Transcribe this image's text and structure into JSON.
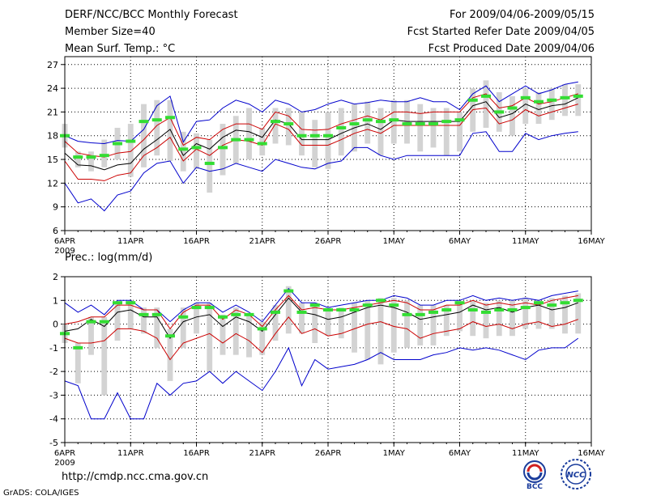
{
  "header": {
    "left": [
      "DERF/NCC/BCC Monthly Forecast",
      "Member Size=40",
      "Mean Surf. Temp.: °C"
    ],
    "right": [
      "For 2009/04/06-2009/05/15",
      "Fcst Started Refer Date 2009/04/05",
      "Fcst Produced Date 2009/04/06"
    ]
  },
  "footer": {
    "url": "http://cmdp.ncc.cma.gov.cn",
    "credit": "GrADS: COLA/IGES",
    "logo_left_text": "BCC",
    "logo_right_text": "NCC"
  },
  "colors": {
    "envelope": "#0000cc",
    "std_band": "#cc0000",
    "mean": "#000000",
    "obs": "#33dd33",
    "spread_bar": "#d3d3d3",
    "grid": "#000000"
  },
  "chart_data": [
    {
      "type": "line",
      "title": "Mean Surf. Temp.: °C",
      "ylim": [
        6,
        28
      ],
      "yticks": [
        6,
        9,
        12,
        15,
        18,
        21,
        24,
        27
      ],
      "day_range": [
        0,
        40
      ],
      "xticks": [
        {
          "day": 0,
          "label": "6APR",
          "sub": "2009"
        },
        {
          "day": 5,
          "label": "11APR"
        },
        {
          "day": 10,
          "label": "16APR"
        },
        {
          "day": 15,
          "label": "21APR"
        },
        {
          "day": 20,
          "label": "26APR"
        },
        {
          "day": 25,
          "label": "1MAY"
        },
        {
          "day": 30,
          "label": "6MAY"
        },
        {
          "day": 35,
          "label": "11MAY"
        },
        {
          "day": 40,
          "label": "16MAY"
        }
      ],
      "days": [
        0,
        1,
        2,
        3,
        4,
        5,
        6,
        7,
        8,
        9,
        10,
        11,
        12,
        13,
        14,
        15,
        16,
        17,
        18,
        19,
        20,
        21,
        22,
        23,
        24,
        25,
        26,
        27,
        28,
        29,
        30,
        31,
        32,
        33,
        34,
        35,
        36,
        37,
        38,
        39
      ],
      "series": [
        {
          "name": "max",
          "style": "envelope",
          "values": [
            18.0,
            17.3,
            17.1,
            17.0,
            17.4,
            17.3,
            18.8,
            21.8,
            23.0,
            17.2,
            19.8,
            20.0,
            21.5,
            22.5,
            22.0,
            21.0,
            22.5,
            22.0,
            21.0,
            21.3,
            22.0,
            22.5,
            22.0,
            22.2,
            22.5,
            22.3,
            22.3,
            22.8,
            22.3,
            22.3,
            21.3,
            23.3,
            24.3,
            22.3,
            23.3,
            24.3,
            23.3,
            23.8,
            24.5,
            24.8
          ]
        },
        {
          "name": "mean_plus_sd",
          "style": "std_band",
          "values": [
            17.3,
            15.8,
            15.5,
            15.3,
            15.8,
            16.0,
            17.5,
            19.3,
            20.3,
            16.8,
            17.8,
            17.5,
            18.8,
            19.5,
            19.5,
            18.8,
            21.0,
            20.5,
            18.8,
            18.7,
            18.8,
            19.5,
            20.0,
            20.5,
            20.0,
            21.0,
            21.0,
            20.8,
            21.0,
            21.0,
            21.0,
            22.8,
            23.3,
            21.5,
            21.8,
            22.8,
            22.0,
            22.3,
            22.8,
            23.3
          ]
        },
        {
          "name": "ensemble_mean",
          "style": "mean",
          "values": [
            15.8,
            14.3,
            14.2,
            13.7,
            14.3,
            14.5,
            16.3,
            17.5,
            18.8,
            15.5,
            17.0,
            16.3,
            17.8,
            18.7,
            18.5,
            17.8,
            20.0,
            19.5,
            17.5,
            17.5,
            17.5,
            18.3,
            19.0,
            19.5,
            18.8,
            20.0,
            19.8,
            19.8,
            19.8,
            19.8,
            19.8,
            21.8,
            22.3,
            20.3,
            20.8,
            22.0,
            21.3,
            21.8,
            22.0,
            22.8
          ]
        },
        {
          "name": "mean_minus_sd",
          "style": "std_band",
          "values": [
            14.8,
            12.5,
            12.5,
            12.3,
            13.0,
            13.3,
            15.5,
            16.5,
            17.8,
            14.8,
            16.3,
            15.5,
            16.8,
            17.5,
            17.3,
            16.8,
            19.5,
            18.8,
            16.8,
            16.8,
            16.8,
            17.5,
            18.3,
            18.8,
            18.3,
            19.3,
            19.3,
            19.3,
            19.3,
            19.3,
            19.3,
            21.3,
            21.5,
            19.5,
            20.0,
            21.3,
            20.5,
            21.0,
            21.5,
            22.0
          ]
        },
        {
          "name": "min",
          "style": "envelope",
          "values": [
            12.0,
            9.5,
            10.0,
            8.5,
            10.5,
            11.0,
            13.3,
            14.5,
            14.8,
            12.0,
            14.0,
            13.5,
            13.8,
            14.5,
            14.0,
            13.5,
            15.0,
            14.5,
            14.0,
            13.8,
            14.5,
            14.8,
            16.5,
            16.5,
            15.5,
            15.0,
            15.5,
            15.5,
            15.5,
            15.5,
            15.5,
            18.3,
            18.5,
            16.0,
            16.0,
            18.3,
            17.5,
            18.0,
            18.3,
            18.5
          ]
        },
        {
          "name": "observed",
          "style": "obs",
          "values": [
            18.0,
            15.3,
            15.3,
            15.5,
            17.0,
            17.3,
            19.8,
            20.0,
            20.3,
            16.3,
            16.5,
            14.5,
            16.5,
            17.5,
            17.5,
            17.0,
            19.8,
            19.5,
            18.0,
            18.0,
            18.0,
            19.0,
            19.5,
            20.0,
            19.8,
            20.0,
            19.5,
            19.5,
            19.5,
            19.8,
            20.0,
            22.5,
            23.0,
            21.0,
            21.5,
            22.8,
            22.3,
            22.5,
            22.8,
            23.0
          ]
        }
      ],
      "spread_bars": {
        "low": [
          16.5,
          14.0,
          13.5,
          14.0,
          15.0,
          12.8,
          14.0,
          15.5,
          14.8,
          13.5,
          13.8,
          10.8,
          13.0,
          14.5,
          15.0,
          15.5,
          17.0,
          16.8,
          15.5,
          14.0,
          13.8,
          15.5,
          16.0,
          17.0,
          15.5,
          17.0,
          17.0,
          16.0,
          16.5,
          15.5,
          16.0,
          18.5,
          19.0,
          18.5,
          18.0,
          19.5,
          19.5,
          20.0,
          20.5,
          20.5
        ],
        "high": [
          19.5,
          16.0,
          16.0,
          17.5,
          19.0,
          19.5,
          22.0,
          22.5,
          22.5,
          18.5,
          18.3,
          17.5,
          19.5,
          20.5,
          21.5,
          19.0,
          21.5,
          21.5,
          21.0,
          20.0,
          21.0,
          21.5,
          22.0,
          22.3,
          21.5,
          22.5,
          22.5,
          22.0,
          21.5,
          21.5,
          21.0,
          24.0,
          25.0,
          23.5,
          23.0,
          24.0,
          23.5,
          24.0,
          24.5,
          24.5
        ]
      }
    },
    {
      "type": "line",
      "title": "Prec.: log(mm/d)",
      "ylim": [
        -5,
        2
      ],
      "yticks": [
        -5,
        -4,
        -3,
        -2,
        -1,
        0,
        1,
        2
      ],
      "day_range": [
        0,
        40
      ],
      "xticks": [
        {
          "day": 0,
          "label": "6APR",
          "sub": "2009"
        },
        {
          "day": 5,
          "label": "11APR"
        },
        {
          "day": 10,
          "label": "16APR"
        },
        {
          "day": 15,
          "label": "21APR"
        },
        {
          "day": 20,
          "label": "26APR"
        },
        {
          "day": 25,
          "label": "1MAY"
        },
        {
          "day": 30,
          "label": "6MAY"
        },
        {
          "day": 35,
          "label": "11MAY"
        },
        {
          "day": 40,
          "label": "16MAY"
        }
      ],
      "days": [
        0,
        1,
        2,
        3,
        4,
        5,
        6,
        7,
        8,
        9,
        10,
        11,
        12,
        13,
        14,
        15,
        16,
        17,
        18,
        19,
        20,
        21,
        22,
        23,
        24,
        25,
        26,
        27,
        28,
        29,
        30,
        31,
        32,
        33,
        34,
        35,
        36,
        37,
        38,
        39
      ],
      "series": [
        {
          "name": "max",
          "style": "envelope",
          "values": [
            0.9,
            0.5,
            0.8,
            0.4,
            1.0,
            1.0,
            0.6,
            0.6,
            0.1,
            0.6,
            0.9,
            0.9,
            0.5,
            0.8,
            0.5,
            0.1,
            0.8,
            1.5,
            0.9,
            0.9,
            0.7,
            0.8,
            0.9,
            1.0,
            1.0,
            1.2,
            1.1,
            0.8,
            0.8,
            1.0,
            1.0,
            1.2,
            1.0,
            1.1,
            1.0,
            1.1,
            1.0,
            1.2,
            1.3,
            1.4
          ]
        },
        {
          "name": "mean_plus_sd",
          "style": "std_band",
          "values": [
            0.0,
            0.1,
            0.3,
            0.3,
            0.8,
            0.8,
            0.6,
            0.6,
            -0.2,
            0.5,
            0.8,
            0.8,
            0.2,
            0.6,
            0.4,
            -0.1,
            0.6,
            1.2,
            0.6,
            0.7,
            0.6,
            0.6,
            0.7,
            0.8,
            0.9,
            1.0,
            0.9,
            0.6,
            0.6,
            0.8,
            0.8,
            1.0,
            0.8,
            0.9,
            0.8,
            0.9,
            0.8,
            1.0,
            1.1,
            1.2
          ]
        },
        {
          "name": "ensemble_mean",
          "style": "mean",
          "values": [
            -0.3,
            -0.2,
            0.2,
            -0.1,
            0.5,
            0.6,
            0.3,
            0.3,
            -0.6,
            0.1,
            0.3,
            0.4,
            -0.1,
            0.3,
            0.1,
            -0.3,
            0.4,
            1.1,
            0.5,
            0.4,
            0.2,
            0.3,
            0.5,
            0.7,
            0.8,
            0.7,
            0.5,
            0.2,
            0.3,
            0.4,
            0.5,
            0.8,
            0.6,
            0.7,
            0.5,
            0.7,
            0.8,
            0.6,
            0.7,
            0.9
          ]
        },
        {
          "name": "mean_minus_sd",
          "style": "std_band",
          "values": [
            -0.6,
            -0.8,
            -0.8,
            -0.7,
            -0.2,
            -0.2,
            -0.3,
            -0.6,
            -1.5,
            -0.8,
            -0.6,
            -0.4,
            -0.8,
            -0.4,
            -0.7,
            -1.2,
            -0.4,
            0.3,
            -0.4,
            -0.2,
            -0.5,
            -0.4,
            -0.2,
            0.0,
            0.1,
            -0.1,
            -0.2,
            -0.6,
            -0.4,
            -0.3,
            -0.2,
            0.1,
            -0.1,
            0.0,
            -0.2,
            0.0,
            0.1,
            -0.1,
            0.0,
            0.2
          ]
        },
        {
          "name": "min",
          "style": "envelope",
          "values": [
            -2.4,
            -2.6,
            -4.0,
            -4.0,
            -2.9,
            -4.0,
            -4.0,
            -2.5,
            -3.0,
            -2.5,
            -2.4,
            -2.0,
            -2.5,
            -2.0,
            -2.4,
            -2.8,
            -2.0,
            -1.0,
            -2.6,
            -1.5,
            -1.9,
            -1.8,
            -1.7,
            -1.5,
            -1.2,
            -1.5,
            -1.5,
            -1.5,
            -1.3,
            -1.2,
            -1.0,
            -1.1,
            -1.0,
            -1.1,
            -1.3,
            -1.5,
            -1.1,
            -1.0,
            -1.0,
            -0.6
          ]
        },
        {
          "name": "observed",
          "style": "obs",
          "values": [
            -0.4,
            -1.0,
            0.1,
            0.1,
            0.9,
            0.9,
            0.4,
            0.4,
            -0.5,
            0.3,
            0.7,
            0.7,
            0.3,
            0.4,
            0.4,
            -0.2,
            0.5,
            1.4,
            0.5,
            0.8,
            0.6,
            0.6,
            0.6,
            0.8,
            1.0,
            0.8,
            0.4,
            0.4,
            0.5,
            0.6,
            0.9,
            0.6,
            0.5,
            0.6,
            0.6,
            0.7,
            0.9,
            0.8,
            0.9,
            1.0
          ]
        }
      ],
      "spread_bars": {
        "low": [
          -0.8,
          -2.5,
          -1.3,
          -3.0,
          -0.7,
          -0.2,
          -0.4,
          -1.0,
          -2.4,
          -1.0,
          -0.4,
          -2.0,
          -1.3,
          -1.3,
          -1.4,
          -1.3,
          -0.7,
          -0.4,
          -0.4,
          -0.8,
          -0.5,
          -0.6,
          -1.2,
          -1.5,
          -1.7,
          -1.2,
          -1.0,
          -0.9,
          -0.9,
          -0.5,
          -0.3,
          -0.5,
          -0.6,
          -0.5,
          -0.5,
          -0.2,
          -0.2,
          -0.2,
          -0.4,
          -0.4
        ],
        "high": [
          0.0,
          -0.8,
          0.3,
          0.3,
          0.9,
          1.0,
          0.7,
          0.7,
          -0.2,
          0.7,
          0.9,
          0.9,
          0.4,
          0.7,
          0.4,
          0.1,
          0.8,
          1.6,
          0.9,
          0.9,
          0.7,
          0.7,
          0.9,
          1.0,
          1.1,
          1.1,
          1.0,
          0.8,
          0.8,
          0.8,
          0.9,
          1.0,
          0.9,
          1.0,
          1.0,
          1.1,
          1.0,
          1.1,
          1.2,
          1.3
        ]
      }
    }
  ]
}
